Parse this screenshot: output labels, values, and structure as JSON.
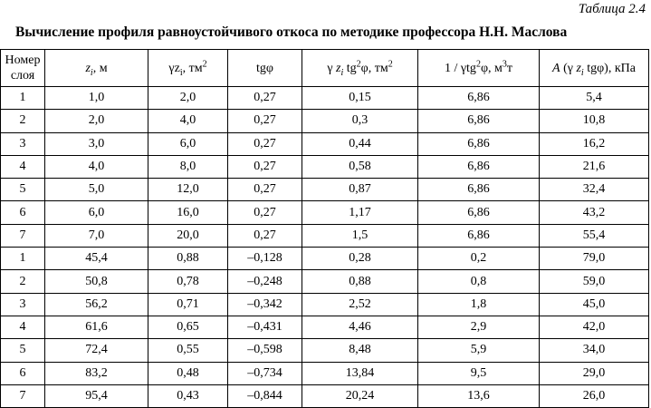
{
  "table_label": "Таблица 2.4",
  "caption": "Вычисление профиля равноустойчивого откоса по методике профессора Н.Н. Маслова",
  "headers": {
    "layer_no_line1": "Номер",
    "layer_no_line2": "слоя",
    "z_var": "z",
    "z_sub": "i",
    "z_unit": ", м",
    "gz_var": "γz",
    "gz_sub": "i",
    "gz_unit": ", тм",
    "gz_sup": "2",
    "tg": "tgφ",
    "gztg_gamma": "γ ",
    "gztg_z": "z",
    "gztg_sub": "i",
    "gztg_tg": " tg",
    "gztg_sup": "2",
    "gztg_unit": "φ, тм",
    "gztg_sup2": "2",
    "inv_a": "1 / γtg",
    "inv_sup": "2",
    "inv_b": "φ, м",
    "inv_sup2": "3",
    "inv_c": "т",
    "A_var": "A",
    "A_a": " (γ ",
    "A_z": "z",
    "A_sub": "i",
    "A_b": " tgφ), кПа"
  },
  "rows": [
    [
      "1",
      "1,0",
      "2,0",
      "0,27",
      "0,15",
      "6,86",
      "5,4"
    ],
    [
      "2",
      "2,0",
      "4,0",
      "0,27",
      "0,3",
      "6,86",
      "10,8"
    ],
    [
      "3",
      "3,0",
      "6,0",
      "0,27",
      "0,44",
      "6,86",
      "16,2"
    ],
    [
      "4",
      "4,0",
      "8,0",
      "0,27",
      "0,58",
      "6,86",
      "21,6"
    ],
    [
      "5",
      "5,0",
      "12,0",
      "0,27",
      "0,87",
      "6,86",
      "32,4"
    ],
    [
      "6",
      "6,0",
      "16,0",
      "0,27",
      "1,17",
      "6,86",
      "43,2"
    ],
    [
      "7",
      "7,0",
      "20,0",
      "0,27",
      "1,5",
      "6,86",
      "55,4"
    ],
    [
      "1",
      "45,4",
      "0,88",
      "–0,128",
      "0,28",
      "0,2",
      "79,0"
    ],
    [
      "2",
      "50,8",
      "0,78",
      "–0,248",
      "0,88",
      "0,8",
      "59,0"
    ],
    [
      "3",
      "56,2",
      "0,71",
      "–0,342",
      "2,52",
      "1,8",
      "45,0"
    ],
    [
      "4",
      "61,6",
      "0,65",
      "–0,431",
      "4,46",
      "2,9",
      "42,0"
    ],
    [
      "5",
      "72,4",
      "0,55",
      "–0,598",
      "8,48",
      "5,9",
      "34,0"
    ],
    [
      "6",
      "83,2",
      "0,48",
      "–0,734",
      "13,84",
      "9,5",
      "29,0"
    ],
    [
      "7",
      "95,4",
      "0,43",
      "–0,844",
      "20,24",
      "13,6",
      "26,0"
    ]
  ]
}
